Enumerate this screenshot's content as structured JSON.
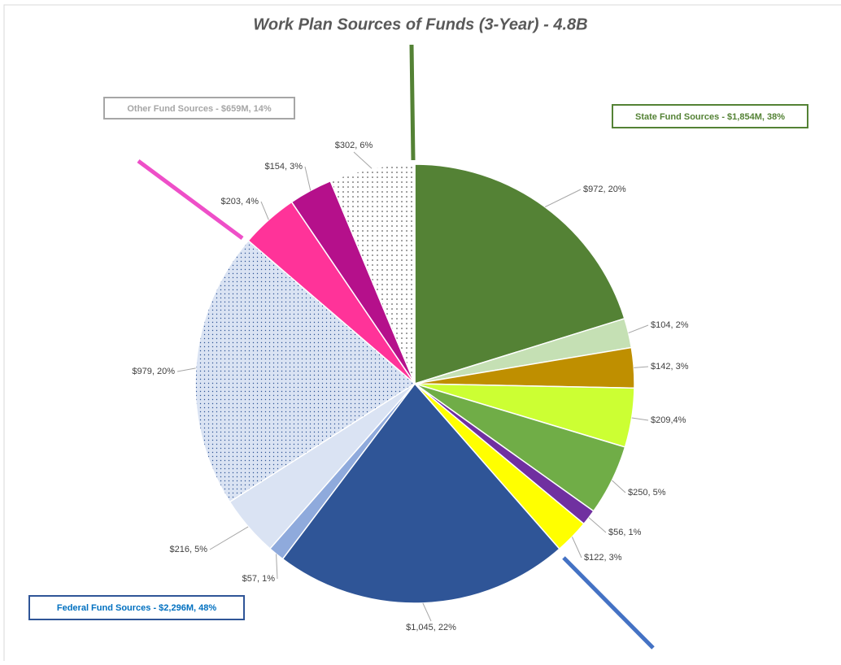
{
  "chart_data": {
    "type": "pie",
    "title": "Work Plan Sources of Funds (3-Year) - 4.8B",
    "values": [
      972,
      104,
      142,
      209,
      250,
      56,
      122,
      1045,
      57,
      216,
      979,
      203,
      154,
      302
    ],
    "value_labels": [
      "$972, 20%",
      "$104, 2%",
      "$142, 3%",
      "$209,4%",
      "$250, 5%",
      "$56, 1%",
      "$122, 3%",
      "$1,045, 22%",
      "$57, 1%",
      "$216, 5%",
      "$979, 20%",
      "$203, 4%",
      "$154, 3%",
      "$302, 6%"
    ],
    "colors": [
      "#548235",
      "#c5e0b4",
      "#bf8f00",
      "#ccff33",
      "#70ad47",
      "#7030a0",
      "#ffff00",
      "#2f5597",
      "#8faadc",
      "#dae3f3",
      "#dae3f3",
      "#ff3399",
      "#b5108b",
      "#ffffff"
    ],
    "dotted": [
      false,
      false,
      false,
      false,
      false,
      false,
      false,
      false,
      false,
      false,
      true,
      false,
      false,
      true
    ],
    "annotations": [
      "Other Fund Sources - $659M, 14%",
      "State Fund Sources - $1,854M, 38%",
      "Federal Fund Sources - $2,296M, 48%"
    ]
  }
}
